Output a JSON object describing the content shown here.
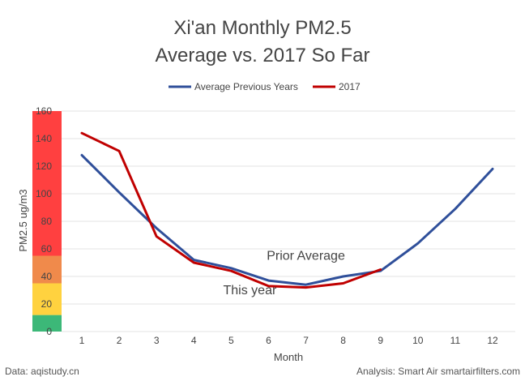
{
  "chart_data": {
    "type": "line",
    "title_lines": [
      "Xi'an Monthly PM2.5",
      "Average vs. 2017 So Far"
    ],
    "xlabel": "Month",
    "ylabel": "PM2.5 ug/m3",
    "x": [
      1,
      2,
      3,
      4,
      5,
      6,
      7,
      8,
      9,
      10,
      11,
      12
    ],
    "xlim": [
      1,
      12
    ],
    "ylim": [
      0,
      160
    ],
    "yticks": [
      0,
      20,
      40,
      60,
      80,
      100,
      120,
      140,
      160
    ],
    "grid": true,
    "legend_position": "top",
    "series": [
      {
        "name": "Average Previous Years",
        "color": "#2f4f9a",
        "values": [
          128,
          101,
          75,
          52,
          46,
          37,
          34,
          40,
          44,
          64,
          89,
          118
        ]
      },
      {
        "name": "2017",
        "color": "#c00000",
        "values": [
          144,
          131,
          69,
          50,
          44,
          33,
          32,
          35,
          45,
          null,
          null,
          null
        ]
      }
    ],
    "aqi_bands": [
      {
        "from": 0,
        "to": 12,
        "color": "#3cb878"
      },
      {
        "from": 12,
        "to": 35,
        "color": "#ffd23f"
      },
      {
        "from": 35,
        "to": 55,
        "color": "#f08a4b"
      },
      {
        "from": 55,
        "to": 160,
        "color": "#ff4040"
      }
    ],
    "annotations": [
      {
        "text": "Prior Average",
        "x": 7,
        "y": 52
      },
      {
        "text": "This year",
        "x": 5.5,
        "y": 27
      }
    ]
  },
  "footer": {
    "source": "Data: aqistudy.cn",
    "analysis": "Analysis: Smart Air smartairfilters.com"
  }
}
